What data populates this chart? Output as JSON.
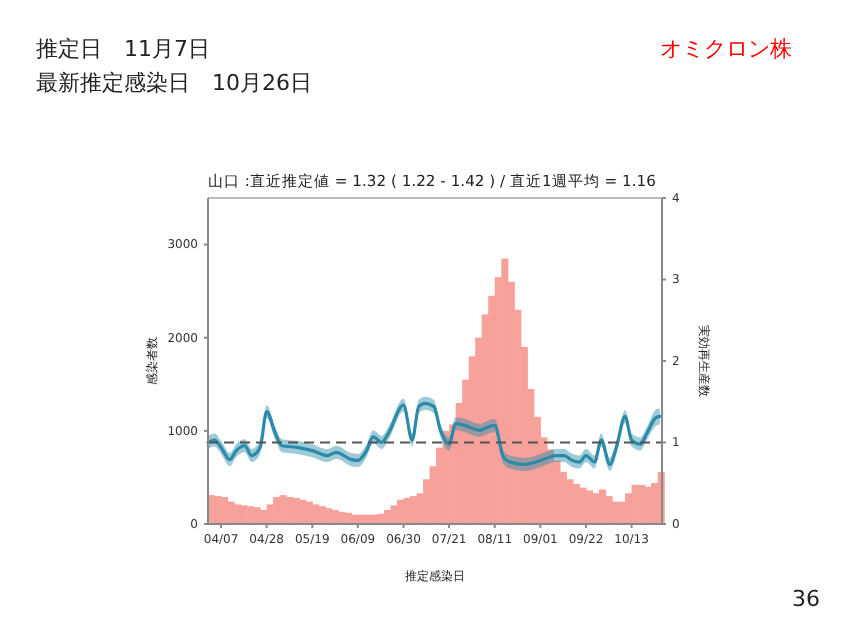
{
  "chart_data": {
    "type": "bar",
    "title": "山口 :直近推定値 = 1.32 ( 1.22 - 1.42 ) / 直近1週平均 = 1.16",
    "xlabel": "推定感染日",
    "ylabel": "感染者数",
    "y2label": "実効再生産数",
    "annotations": [
      "推定日　11月7日",
      "最新推定感染日　10月26日",
      "オミクロン株",
      "36"
    ],
    "xlim": [
      "--04-01",
      "--10-27"
    ],
    "xticks": [
      {
        "value": "--04-07",
        "label": "04/07"
      },
      {
        "value": "--04-28",
        "label": "04/28"
      },
      {
        "value": "--05-19",
        "label": "05/19"
      },
      {
        "value": "--06-09",
        "label": "06/09"
      },
      {
        "value": "--06-30",
        "label": "06/30"
      },
      {
        "value": "--07-21",
        "label": "07/21"
      },
      {
        "value": "--08-11",
        "label": "08/11"
      },
      {
        "value": "--09-01",
        "label": "09/01"
      },
      {
        "value": "--09-22",
        "label": "09/22"
      },
      {
        "value": "--10-13",
        "label": "10/13"
      }
    ],
    "ylim": [
      0,
      3500
    ],
    "yticks": [
      0,
      1000,
      2000,
      3000
    ],
    "y2lim": [
      0,
      4
    ],
    "y2ticks": [
      0,
      1,
      2,
      3,
      4
    ],
    "grid": false,
    "ref_lines": [
      {
        "axis": "y2",
        "value": 1,
        "color": "#555555",
        "line_style": "dashed"
      }
    ],
    "series": [
      {
        "color": "#f7a19b",
        "x": [
          "--04-01",
          "--04-04",
          "--04-07",
          "--04-10",
          "--04-13",
          "--04-16",
          "--04-19",
          "--04-22",
          "--04-25",
          "--04-28",
          "--05-01",
          "--05-04",
          "--05-07",
          "--05-10",
          "--05-13",
          "--05-16",
          "--05-19",
          "--05-22",
          "--05-25",
          "--05-28",
          "--05-31",
          "--06-03",
          "--06-06",
          "--06-09",
          "--06-12",
          "--06-15",
          "--06-18",
          "--06-21",
          "--06-24",
          "--06-27",
          "--06-30",
          "--07-03",
          "--07-06",
          "--07-09",
          "--07-12",
          "--07-15",
          "--07-18",
          "--07-21",
          "--07-24",
          "--07-27",
          "--07-30",
          "--08-02",
          "--08-05",
          "--08-08",
          "--08-11",
          "--08-14",
          "--08-17",
          "--08-20",
          "--08-23",
          "--08-26",
          "--08-29",
          "--09-01",
          "--09-04",
          "--09-07",
          "--09-10",
          "--09-13",
          "--09-16",
          "--09-19",
          "--09-22",
          "--09-25",
          "--09-28",
          "--10-01",
          "--10-04",
          "--10-07",
          "--10-10",
          "--10-13",
          "--10-16",
          "--10-19",
          "--10-22",
          "--10-25"
        ],
        "values": [
          310,
          300,
          290,
          240,
          210,
          200,
          190,
          180,
          150,
          210,
          290,
          310,
          290,
          280,
          260,
          240,
          210,
          190,
          170,
          150,
          130,
          120,
          100,
          100,
          100,
          100,
          110,
          150,
          200,
          260,
          280,
          300,
          330,
          480,
          620,
          820,
          1000,
          1070,
          1300,
          1550,
          1800,
          2000,
          2250,
          2450,
          2650,
          2850,
          2600,
          2300,
          1900,
          1450,
          1150,
          930,
          800,
          680,
          560,
          480,
          430,
          390,
          360,
          330,
          370,
          300,
          240,
          240,
          330,
          420,
          420,
          400,
          440,
          560
        ]
      },
      {
        "type": "line",
        "axis": "y2",
        "color": "#2b8aa8",
        "x": [
          "--04-01",
          "--04-04",
          "--04-07",
          "--04-11",
          "--04-14",
          "--04-18",
          "--04-21",
          "--04-25",
          "--04-28",
          "--05-02",
          "--05-05",
          "--05-12",
          "--05-19",
          "--05-26",
          "--05-30",
          "--06-06",
          "--06-09",
          "--06-13",
          "--06-16",
          "--06-20",
          "--06-23",
          "--06-30",
          "--07-04",
          "--07-07",
          "--07-10",
          "--07-14",
          "--07-17",
          "--07-21",
          "--07-24",
          "--07-28",
          "--08-04",
          "--08-08",
          "--08-11",
          "--08-15",
          "--08-18",
          "--08-25",
          "--09-01",
          "--09-05",
          "--09-08",
          "--09-12",
          "--09-15",
          "--09-19",
          "--09-22",
          "--09-26",
          "--09-29",
          "--10-03",
          "--10-06",
          "--10-10",
          "--10-13",
          "--10-17",
          "--10-20",
          "--10-24",
          "--10-26"
        ],
        "values": [
          1.0,
          1.03,
          0.94,
          0.79,
          0.9,
          0.96,
          0.84,
          0.94,
          1.38,
          1.11,
          0.96,
          0.94,
          0.9,
          0.84,
          0.88,
          0.79,
          0.78,
          0.9,
          1.07,
          1.0,
          1.11,
          1.46,
          1.03,
          1.44,
          1.48,
          1.44,
          1.15,
          0.98,
          1.23,
          1.21,
          1.15,
          1.19,
          1.21,
          0.82,
          0.76,
          0.73,
          0.78,
          0.82,
          0.84,
          0.84,
          0.79,
          0.76,
          0.84,
          0.76,
          1.03,
          0.73,
          0.94,
          1.32,
          1.03,
          0.98,
          1.11,
          1.3,
          1.32
        ],
        "lower": [
          0.92,
          0.95,
          0.86,
          0.71,
          0.82,
          0.88,
          0.76,
          0.86,
          1.3,
          1.03,
          0.88,
          0.86,
          0.82,
          0.76,
          0.8,
          0.71,
          0.7,
          0.82,
          0.99,
          0.92,
          1.03,
          1.38,
          0.95,
          1.36,
          1.4,
          1.36,
          1.07,
          0.9,
          1.15,
          1.13,
          1.07,
          1.11,
          1.13,
          0.74,
          0.68,
          0.65,
          0.7,
          0.74,
          0.76,
          0.76,
          0.71,
          0.68,
          0.76,
          0.68,
          0.95,
          0.65,
          0.86,
          1.24,
          0.95,
          0.9,
          1.03,
          1.2,
          1.22
        ],
        "upper": [
          1.08,
          1.11,
          1.02,
          0.87,
          0.98,
          1.04,
          0.92,
          1.02,
          1.46,
          1.19,
          1.04,
          1.02,
          0.98,
          0.92,
          0.96,
          0.87,
          0.86,
          0.98,
          1.15,
          1.08,
          1.19,
          1.54,
          1.11,
          1.52,
          1.56,
          1.52,
          1.23,
          1.06,
          1.31,
          1.29,
          1.23,
          1.27,
          1.29,
          0.9,
          0.84,
          0.81,
          0.86,
          0.9,
          0.92,
          0.92,
          0.87,
          0.84,
          0.92,
          0.84,
          1.11,
          0.81,
          1.02,
          1.4,
          1.11,
          1.06,
          1.19,
          1.4,
          1.42
        ]
      }
    ]
  }
}
